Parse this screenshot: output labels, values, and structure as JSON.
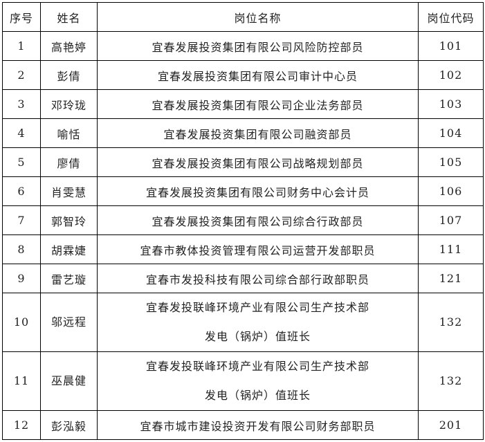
{
  "headers": [
    "序号",
    "姓名",
    "岗位名称",
    "岗位代码"
  ],
  "rows": [
    {
      "no": "1",
      "name": "高艳婷",
      "position": "宜春发展投资集团有限公司风险防控部员",
      "position2": "",
      "code": "101"
    },
    {
      "no": "2",
      "name": "彭倩",
      "position": "宜春发展投资集团有限公司审计中心员",
      "position2": "",
      "code": "102"
    },
    {
      "no": "3",
      "name": "邓玲珑",
      "position": "宜春发展投资集团有限公司企业法务部员",
      "position2": "",
      "code": "103"
    },
    {
      "no": "4",
      "name": "喻恬",
      "position": "宜春发展投资集团有限公司融资部员",
      "position2": "",
      "code": "104"
    },
    {
      "no": "5",
      "name": "廖倩",
      "position": "宜春发展投资集团有限公司战略规划部员",
      "position2": "",
      "code": "105"
    },
    {
      "no": "6",
      "name": "肖雯慧",
      "position": "宜春发展投资集团有限公司财务中心会计员",
      "position2": "",
      "code": "106"
    },
    {
      "no": "7",
      "name": "郭智玲",
      "position": "宜春发展投资集团有限公司综合行政部员",
      "position2": "",
      "code": "107"
    },
    {
      "no": "8",
      "name": "胡霖婕",
      "position": "宜春市教体投资管理有限公司运营开发部职员",
      "position2": "",
      "code": "111"
    },
    {
      "no": "9",
      "name": "雷艺璇",
      "position": "宜春市发投科技有限公司综合部行政部职员",
      "position2": "",
      "code": "121"
    },
    {
      "no": "10",
      "name": "邬远程",
      "position": "宜春发投联峰环境产业有限公司生产技术部",
      "position2": "发电（锅炉）值班长",
      "code": "132"
    },
    {
      "no": "11",
      "name": "巫晨健",
      "position": "宜春发投联峰环境产业有限公司生产技术部",
      "position2": "发电（锅炉）值班长",
      "code": "132"
    },
    {
      "no": "12",
      "name": "彭泓毅",
      "position": "宜春市城市建设投资开发有限公司财务部职员",
      "position2": "",
      "code": "201"
    }
  ]
}
